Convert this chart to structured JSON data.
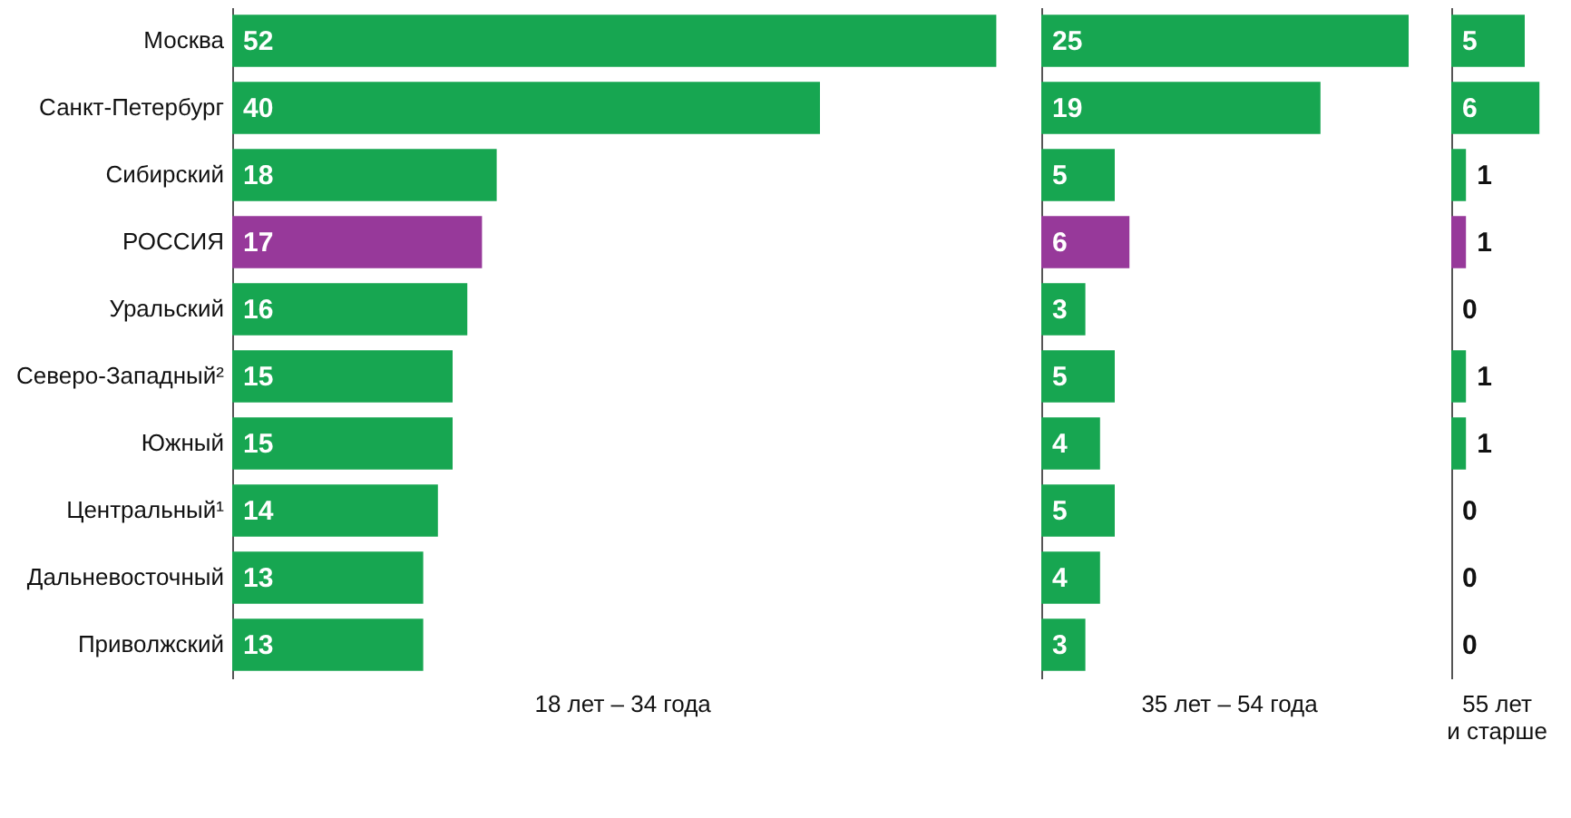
{
  "chart_data": [
    {
      "type": "bar",
      "orientation": "horizontal",
      "xlabel": "18 лет – 34 года",
      "categories": [
        "Москва",
        "Санкт-Петербург",
        "Сибирский",
        "РОССИЯ",
        "Уральский",
        "Северо-Западный²",
        "Южный",
        "Центральный¹",
        "Дальневосточный",
        "Приволжский"
      ],
      "values": [
        52,
        40,
        18,
        17,
        16,
        15,
        15,
        14,
        13,
        13
      ],
      "colors": [
        "#17a651",
        "#17a651",
        "#17a651",
        "#97399a",
        "#17a651",
        "#17a651",
        "#17a651",
        "#17a651",
        "#17a651",
        "#17a651"
      ],
      "data_labels": true,
      "tick_labels": "y"
    },
    {
      "type": "bar",
      "orientation": "horizontal",
      "xlabel": "35 лет – 54 года",
      "categories": [
        null,
        null,
        null,
        null,
        null,
        null,
        null,
        null,
        null,
        null
      ],
      "values": [
        25,
        19,
        5,
        6,
        3,
        5,
        4,
        5,
        4,
        3
      ],
      "colors": [
        "#17a651",
        "#17a651",
        "#17a651",
        "#97399a",
        "#17a651",
        "#17a651",
        "#17a651",
        "#17a651",
        "#17a651",
        "#17a651"
      ],
      "data_labels": true,
      "tick_labels": false
    },
    {
      "type": "bar",
      "orientation": "horizontal",
      "xlabel": "55 лет и старше",
      "categories": [
        null,
        null,
        null,
        null,
        null,
        null,
        null,
        null,
        null,
        null
      ],
      "values": [
        5,
        6,
        1,
        1,
        0,
        1,
        1,
        0,
        0,
        0
      ],
      "colors": [
        "#17a651",
        "#17a651",
        "#17a651",
        "#97399a",
        "#17a651",
        "#17a651",
        "#17a651",
        "#17a651",
        "#17a651",
        "#17a651"
      ],
      "data_labels": true,
      "tick_labels": false
    }
  ]
}
